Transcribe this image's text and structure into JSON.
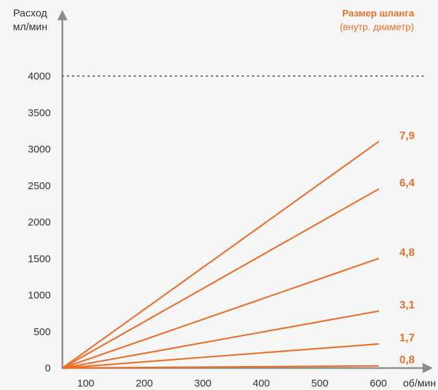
{
  "chart_data": {
    "type": "line",
    "ylabel_line1": "Расход",
    "ylabel_line2": "мл/мин",
    "xlabel": "об/мин",
    "legend_title": "Размер шланга",
    "legend_subtitle": "(внутр. диаметр)",
    "x_ticks": [
      "100",
      "200",
      "300",
      "400",
      "500",
      "600"
    ],
    "y_ticks": [
      "0",
      "500",
      "1000",
      "1500",
      "2000",
      "2500",
      "3000",
      "3500",
      "4000"
    ],
    "xlim": [
      60,
      620
    ],
    "ylim": [
      0,
      4100
    ],
    "max_line": 4000,
    "series": [
      {
        "name": "7,9",
        "x": [
          60,
          600
        ],
        "y": [
          0,
          3100
        ]
      },
      {
        "name": "6,4",
        "x": [
          60,
          600
        ],
        "y": [
          0,
          2450
        ]
      },
      {
        "name": "4,8",
        "x": [
          60,
          600
        ],
        "y": [
          0,
          1500
        ]
      },
      {
        "name": "3,1",
        "x": [
          60,
          600
        ],
        "y": [
          0,
          780
        ]
      },
      {
        "name": "1,7",
        "x": [
          60,
          600
        ],
        "y": [
          0,
          330
        ]
      },
      {
        "name": "0,8",
        "x": [
          60,
          600
        ],
        "y": [
          0,
          30
        ]
      }
    ],
    "colors": {
      "series": "#e8702a",
      "axis": "#8c8c8c",
      "text": "#333333",
      "dotted": "#666666"
    }
  }
}
